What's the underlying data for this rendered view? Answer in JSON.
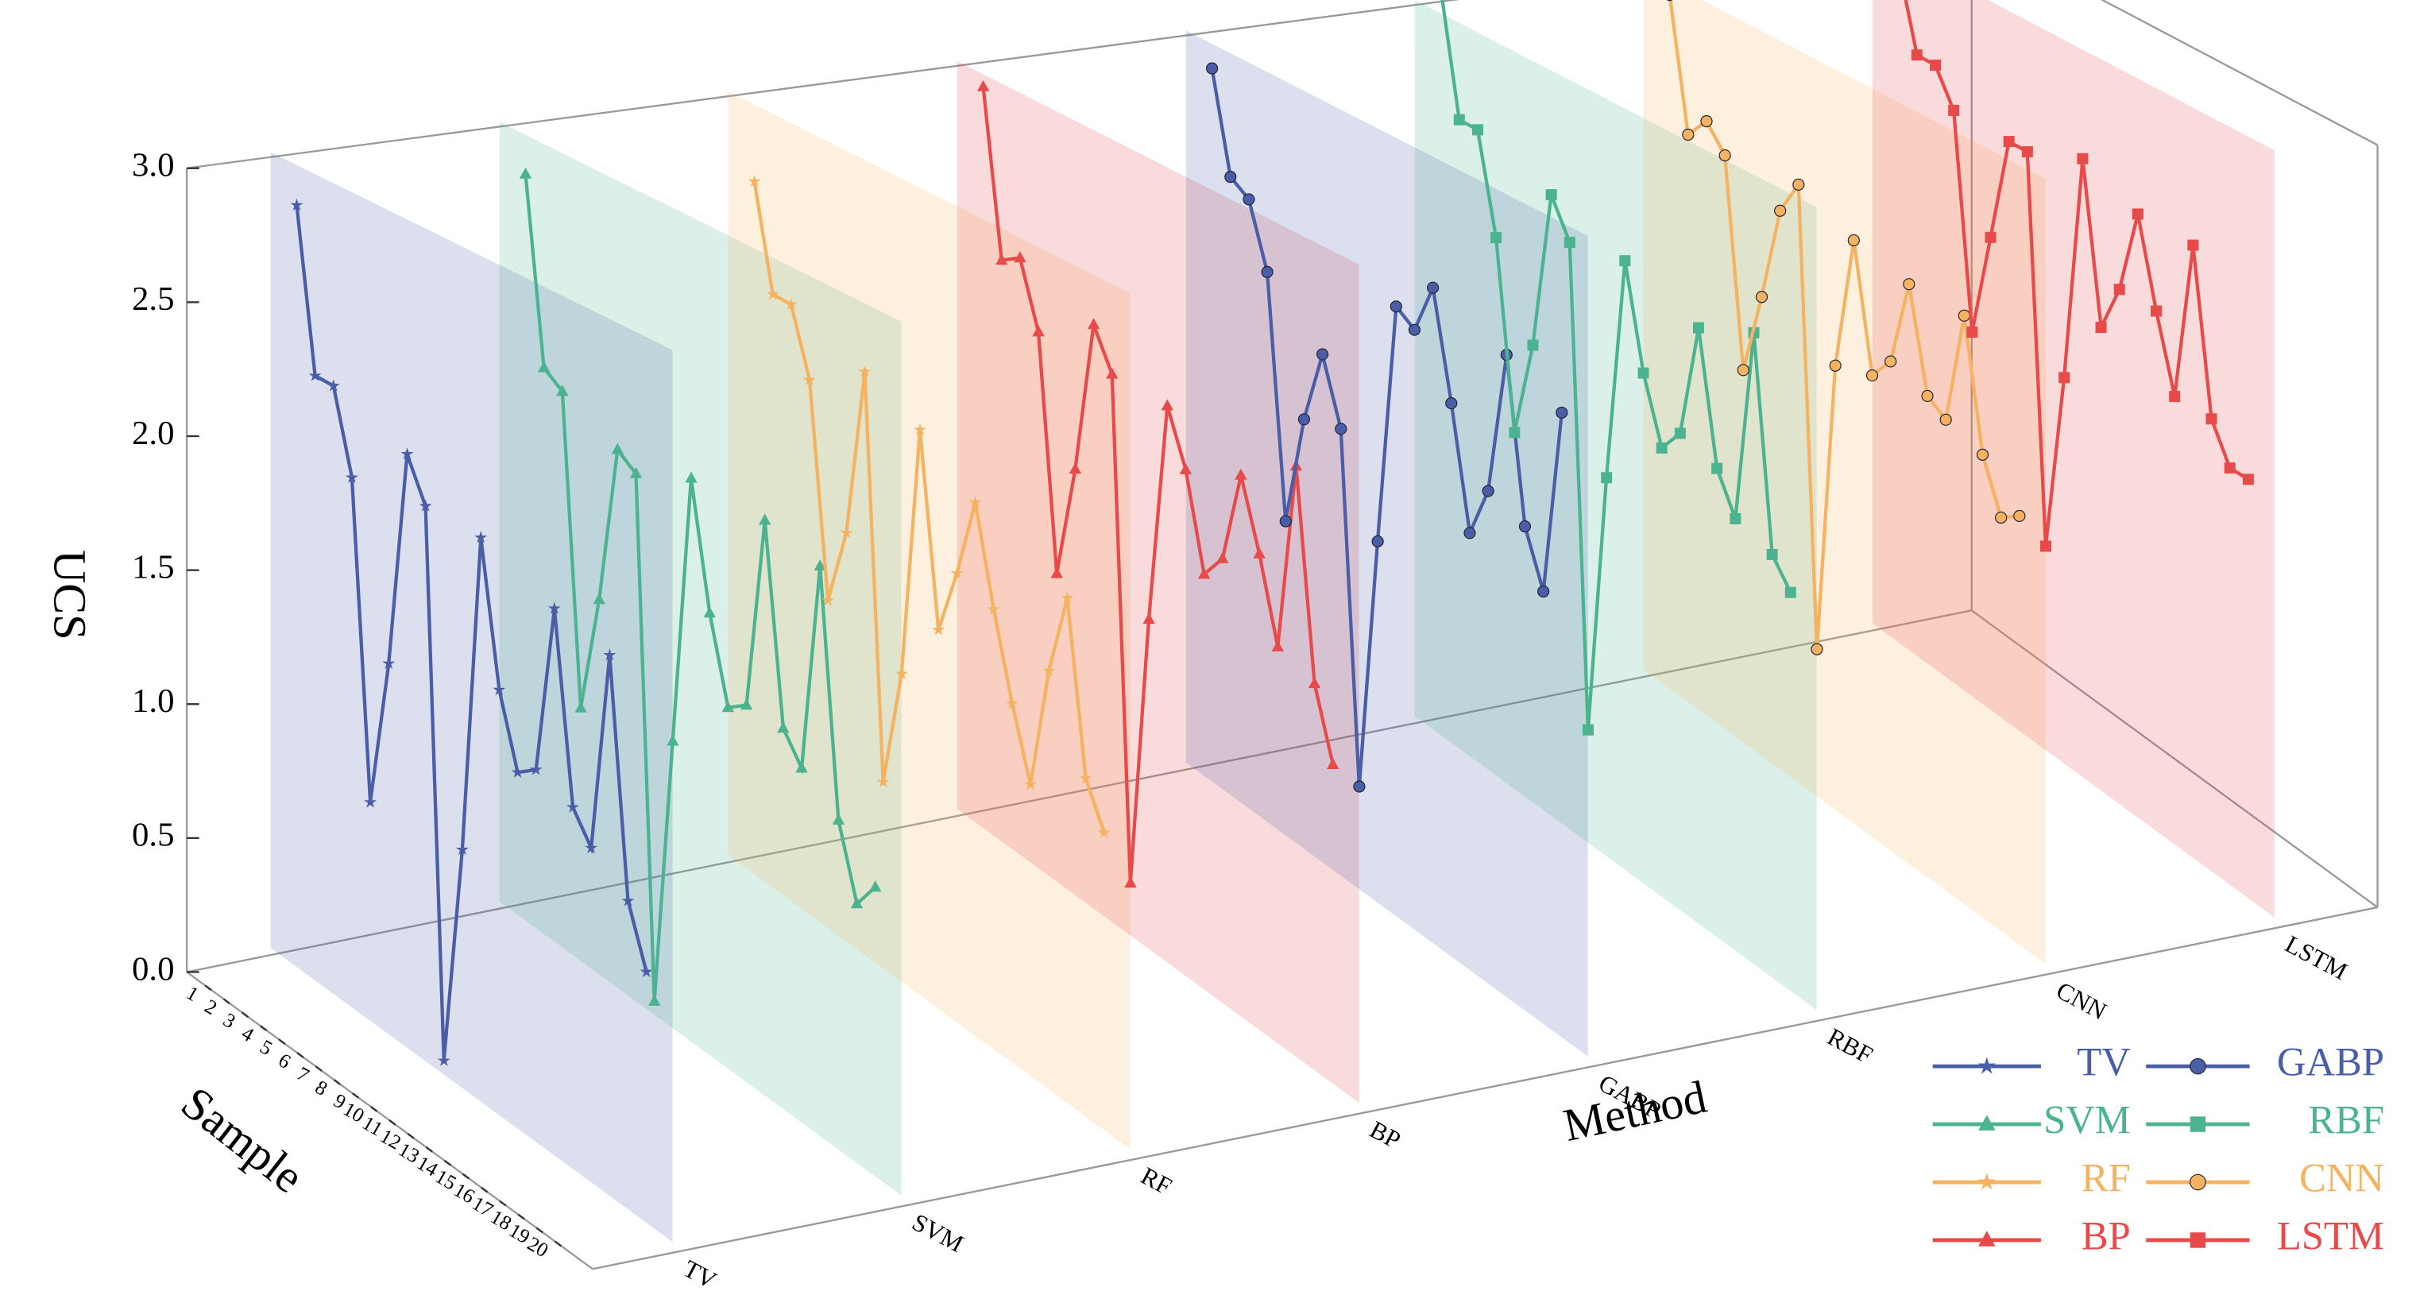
{
  "chart_data": {
    "type": "line3d",
    "ylabel": "UCS",
    "xlabel": "Sample",
    "zlabel": "Method",
    "categories": [
      "TV",
      "SVM",
      "RF",
      "BP",
      "GABP",
      "RBF",
      "CNN",
      "LSTM"
    ],
    "x": [
      1,
      2,
      3,
      4,
      5,
      6,
      7,
      8,
      9,
      10,
      11,
      12,
      13,
      14,
      15,
      16,
      17,
      18,
      19,
      20
    ],
    "xlim": [
      0,
      21
    ],
    "ylim": [
      0,
      3
    ],
    "yticks": [
      {
        "value": 0,
        "label": "0.0"
      },
      0.5,
      {
        "value": 1,
        "label": "1.0"
      },
      1.5,
      {
        "value": 2,
        "label": "2.0"
      },
      2.5,
      {
        "value": 3,
        "label": "3.0"
      }
    ],
    "series": [
      {
        "name": "TV",
        "color": "#4a5ea8",
        "marker": "star",
        "values": [
          2.85,
          2.25,
          2.25,
          1.95,
          0.8,
          1.35,
          2.15,
          2.0,
          0.05,
          0.85,
          2.0,
          1.5,
          1.25,
          1.3,
          1.9,
          1.25,
          1.15,
          1.85,
          1.05,
          0.85
        ]
      },
      {
        "name": "SVM",
        "color": "#4cb391",
        "marker": "triangle",
        "values": [
          2.85,
          2.15,
          2.1,
          0.95,
          1.4,
          2.0,
          1.95,
          0.05,
          1.05,
          2.05,
          1.6,
          1.3,
          1.35,
          2.05,
          1.35,
          1.25,
          2.0,
          1.15,
          0.9,
          1.0
        ]
      },
      {
        "name": "RF",
        "color": "#f5b261",
        "marker": "star",
        "values": [
          2.7,
          2.3,
          2.3,
          2.05,
          1.25,
          1.55,
          2.2,
          0.7,
          1.15,
          2.1,
          1.4,
          1.65,
          1.95,
          1.6,
          1.3,
          1.05,
          1.5,
          1.8,
          1.2,
          1.05
        ]
      },
      {
        "name": "BP",
        "color": "#e84a4a",
        "marker": "triangle",
        "values": [
          2.95,
          2.3,
          2.35,
          2.1,
          1.2,
          1.65,
          2.25,
          2.1,
          0.2,
          1.25,
          2.1,
          1.9,
          1.55,
          1.65,
          2.0,
          1.75,
          1.45,
          2.15,
          1.4,
          1.15
        ]
      },
      {
        "name": "GABP",
        "color": "#4a5ea8",
        "marker": "circle",
        "values": [
          2.9,
          2.5,
          2.45,
          2.2,
          1.25,
          1.7,
          2.0,
          1.75,
          0.4,
          1.4,
          2.35,
          2.3,
          2.5,
          2.1,
          1.65,
          1.85,
          2.4,
          1.8,
          1.6,
          2.3
        ]
      },
      {
        "name": "RBF",
        "color": "#4cb391",
        "marker": "square",
        "values": [
          3.1,
          2.6,
          2.6,
          2.2,
          1.45,
          1.85,
          2.5,
          2.35,
          0.45,
          1.5,
          2.4,
          2.0,
          1.75,
          1.85,
          2.3,
          1.8,
          1.65,
          2.4,
          1.6,
          1.5
        ]
      },
      {
        "name": "CNN",
        "color": "#f5b261",
        "marker": "circle",
        "values": [
          2.95,
          2.4,
          2.5,
          2.4,
          1.55,
          1.9,
          2.3,
          2.45,
          0.6,
          1.8,
          2.35,
          1.85,
          1.95,
          2.3,
          1.9,
          1.85,
          2.3,
          1.8,
          1.6,
          1.65
        ]
      },
      {
        "name": "LSTM",
        "color": "#e84a4a",
        "marker": "square",
        "values": [
          2.95,
          2.6,
          2.6,
          2.45,
          1.55,
          2.0,
          2.45,
          2.45,
          0.85,
          1.6,
          2.55,
          1.9,
          2.1,
          2.45,
          2.1,
          1.8,
          2.45,
          1.8,
          1.65,
          1.65
        ]
      }
    ]
  }
}
